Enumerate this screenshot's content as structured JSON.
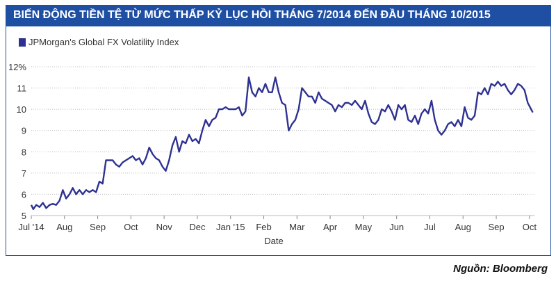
{
  "title": "BIẾN ĐỘNG TIỀN TỆ TỪ MỨC THẤP KỶ LỤC HỒI THÁNG 7/2014 ĐẾN ĐẦU THÁNG 10/2015",
  "source": "Nguồn: Bloomberg",
  "colors": {
    "title_bar": "#1f4fa3",
    "line": "#2e3192",
    "frame": "#1f4fa3",
    "grid": "#bbbbbb"
  },
  "chart_data": {
    "type": "line",
    "xlabel": "Date",
    "ylabel": "",
    "ylim": [
      5,
      12
    ],
    "y_ticks": [
      5,
      6,
      7,
      8,
      9,
      10,
      11,
      12
    ],
    "y_tick_labels": [
      "5",
      "6",
      "7",
      "8",
      "9",
      "10",
      "11",
      "12%"
    ],
    "x_ticks": [
      {
        "pos": 0,
        "label": "Jul '14"
      },
      {
        "pos": 1,
        "label": "Aug"
      },
      {
        "pos": 2,
        "label": "Sep"
      },
      {
        "pos": 3,
        "label": "Oct"
      },
      {
        "pos": 4,
        "label": "Nov"
      },
      {
        "pos": 5,
        "label": "Dec"
      },
      {
        "pos": 6,
        "label": "Jan '15"
      },
      {
        "pos": 7,
        "label": "Feb"
      },
      {
        "pos": 8,
        "label": "Mar"
      },
      {
        "pos": 9,
        "label": "Apr"
      },
      {
        "pos": 10,
        "label": "May"
      },
      {
        "pos": 11,
        "label": "Jun"
      },
      {
        "pos": 12,
        "label": "Jul"
      },
      {
        "pos": 13,
        "label": "Aug"
      },
      {
        "pos": 14,
        "label": "Sep"
      },
      {
        "pos": 15,
        "label": "Oct"
      }
    ],
    "xlim": [
      0,
      15.15
    ],
    "grid": "horizontal",
    "legend": "top-left",
    "series": [
      {
        "name": "JPMorgan's Global FX Volatility Index",
        "points": [
          [
            0.0,
            5.5
          ],
          [
            0.06,
            5.3
          ],
          [
            0.15,
            5.5
          ],
          [
            0.25,
            5.4
          ],
          [
            0.35,
            5.6
          ],
          [
            0.45,
            5.35
          ],
          [
            0.55,
            5.5
          ],
          [
            0.65,
            5.55
          ],
          [
            0.75,
            5.5
          ],
          [
            0.85,
            5.7
          ],
          [
            0.95,
            6.2
          ],
          [
            1.05,
            5.8
          ],
          [
            1.15,
            6.0
          ],
          [
            1.25,
            6.3
          ],
          [
            1.35,
            6.0
          ],
          [
            1.45,
            6.2
          ],
          [
            1.55,
            6.0
          ],
          [
            1.65,
            6.2
          ],
          [
            1.75,
            6.1
          ],
          [
            1.85,
            6.2
          ],
          [
            1.95,
            6.1
          ],
          [
            2.05,
            6.6
          ],
          [
            2.15,
            6.5
          ],
          [
            2.25,
            7.6
          ],
          [
            2.35,
            7.6
          ],
          [
            2.45,
            7.6
          ],
          [
            2.55,
            7.4
          ],
          [
            2.65,
            7.3
          ],
          [
            2.75,
            7.5
          ],
          [
            2.85,
            7.6
          ],
          [
            2.95,
            7.7
          ],
          [
            3.05,
            7.8
          ],
          [
            3.15,
            7.6
          ],
          [
            3.25,
            7.7
          ],
          [
            3.35,
            7.4
          ],
          [
            3.45,
            7.7
          ],
          [
            3.55,
            8.2
          ],
          [
            3.65,
            7.9
          ],
          [
            3.75,
            7.7
          ],
          [
            3.85,
            7.6
          ],
          [
            3.95,
            7.3
          ],
          [
            4.05,
            7.1
          ],
          [
            4.15,
            7.6
          ],
          [
            4.25,
            8.3
          ],
          [
            4.35,
            8.7
          ],
          [
            4.45,
            8.0
          ],
          [
            4.55,
            8.5
          ],
          [
            4.65,
            8.4
          ],
          [
            4.75,
            8.8
          ],
          [
            4.85,
            8.5
          ],
          [
            4.95,
            8.6
          ],
          [
            5.05,
            8.4
          ],
          [
            5.15,
            9.0
          ],
          [
            5.25,
            9.5
          ],
          [
            5.35,
            9.2
          ],
          [
            5.45,
            9.5
          ],
          [
            5.55,
            9.6
          ],
          [
            5.65,
            10.0
          ],
          [
            5.75,
            10.0
          ],
          [
            5.85,
            10.1
          ],
          [
            5.95,
            10.0
          ],
          [
            6.05,
            10.0
          ],
          [
            6.15,
            10.0
          ],
          [
            6.25,
            10.1
          ],
          [
            6.35,
            9.7
          ],
          [
            6.45,
            9.9
          ],
          [
            6.55,
            11.5
          ],
          [
            6.65,
            10.8
          ],
          [
            6.75,
            10.6
          ],
          [
            6.85,
            11.0
          ],
          [
            6.95,
            10.8
          ],
          [
            7.05,
            11.2
          ],
          [
            7.15,
            10.8
          ],
          [
            7.25,
            10.8
          ],
          [
            7.35,
            11.5
          ],
          [
            7.45,
            10.8
          ],
          [
            7.55,
            10.3
          ],
          [
            7.65,
            10.2
          ],
          [
            7.75,
            9.0
          ],
          [
            7.85,
            9.3
          ],
          [
            7.95,
            9.5
          ],
          [
            8.05,
            10.0
          ],
          [
            8.15,
            11.0
          ],
          [
            8.25,
            10.8
          ],
          [
            8.35,
            10.6
          ],
          [
            8.45,
            10.6
          ],
          [
            8.55,
            10.3
          ],
          [
            8.65,
            10.8
          ],
          [
            8.75,
            10.5
          ],
          [
            8.85,
            10.4
          ],
          [
            8.95,
            10.3
          ],
          [
            9.05,
            10.2
          ],
          [
            9.15,
            9.9
          ],
          [
            9.25,
            10.2
          ],
          [
            9.35,
            10.1
          ],
          [
            9.45,
            10.3
          ],
          [
            9.55,
            10.3
          ],
          [
            9.65,
            10.2
          ],
          [
            9.75,
            10.4
          ],
          [
            9.85,
            10.2
          ],
          [
            9.95,
            10.0
          ],
          [
            10.05,
            10.4
          ],
          [
            10.15,
            9.8
          ],
          [
            10.25,
            9.4
          ],
          [
            10.35,
            9.3
          ],
          [
            10.45,
            9.5
          ],
          [
            10.55,
            10.0
          ],
          [
            10.65,
            9.9
          ],
          [
            10.75,
            10.2
          ],
          [
            10.85,
            9.9
          ],
          [
            10.95,
            9.5
          ],
          [
            11.05,
            10.2
          ],
          [
            11.15,
            10.0
          ],
          [
            11.25,
            10.2
          ],
          [
            11.35,
            9.5
          ],
          [
            11.45,
            9.4
          ],
          [
            11.55,
            9.7
          ],
          [
            11.65,
            9.3
          ],
          [
            11.75,
            9.8
          ],
          [
            11.85,
            10.0
          ],
          [
            11.95,
            9.8
          ],
          [
            12.05,
            10.4
          ],
          [
            12.15,
            9.5
          ],
          [
            12.25,
            9.0
          ],
          [
            12.35,
            8.8
          ],
          [
            12.45,
            9.0
          ],
          [
            12.55,
            9.3
          ],
          [
            12.65,
            9.4
          ],
          [
            12.75,
            9.2
          ],
          [
            12.85,
            9.5
          ],
          [
            12.95,
            9.2
          ],
          [
            13.05,
            10.1
          ],
          [
            13.15,
            9.6
          ],
          [
            13.25,
            9.5
          ],
          [
            13.35,
            9.7
          ],
          [
            13.45,
            10.8
          ],
          [
            13.55,
            10.7
          ],
          [
            13.65,
            11.0
          ],
          [
            13.75,
            10.7
          ],
          [
            13.85,
            11.2
          ],
          [
            13.95,
            11.1
          ],
          [
            14.05,
            11.3
          ],
          [
            14.15,
            11.1
          ],
          [
            14.25,
            11.2
          ],
          [
            14.35,
            10.9
          ],
          [
            14.45,
            10.7
          ],
          [
            14.55,
            10.9
          ],
          [
            14.65,
            11.2
          ],
          [
            14.75,
            11.1
          ],
          [
            14.85,
            10.9
          ],
          [
            14.95,
            10.3
          ],
          [
            15.05,
            10.0
          ],
          [
            15.1,
            9.85
          ]
        ]
      }
    ]
  }
}
